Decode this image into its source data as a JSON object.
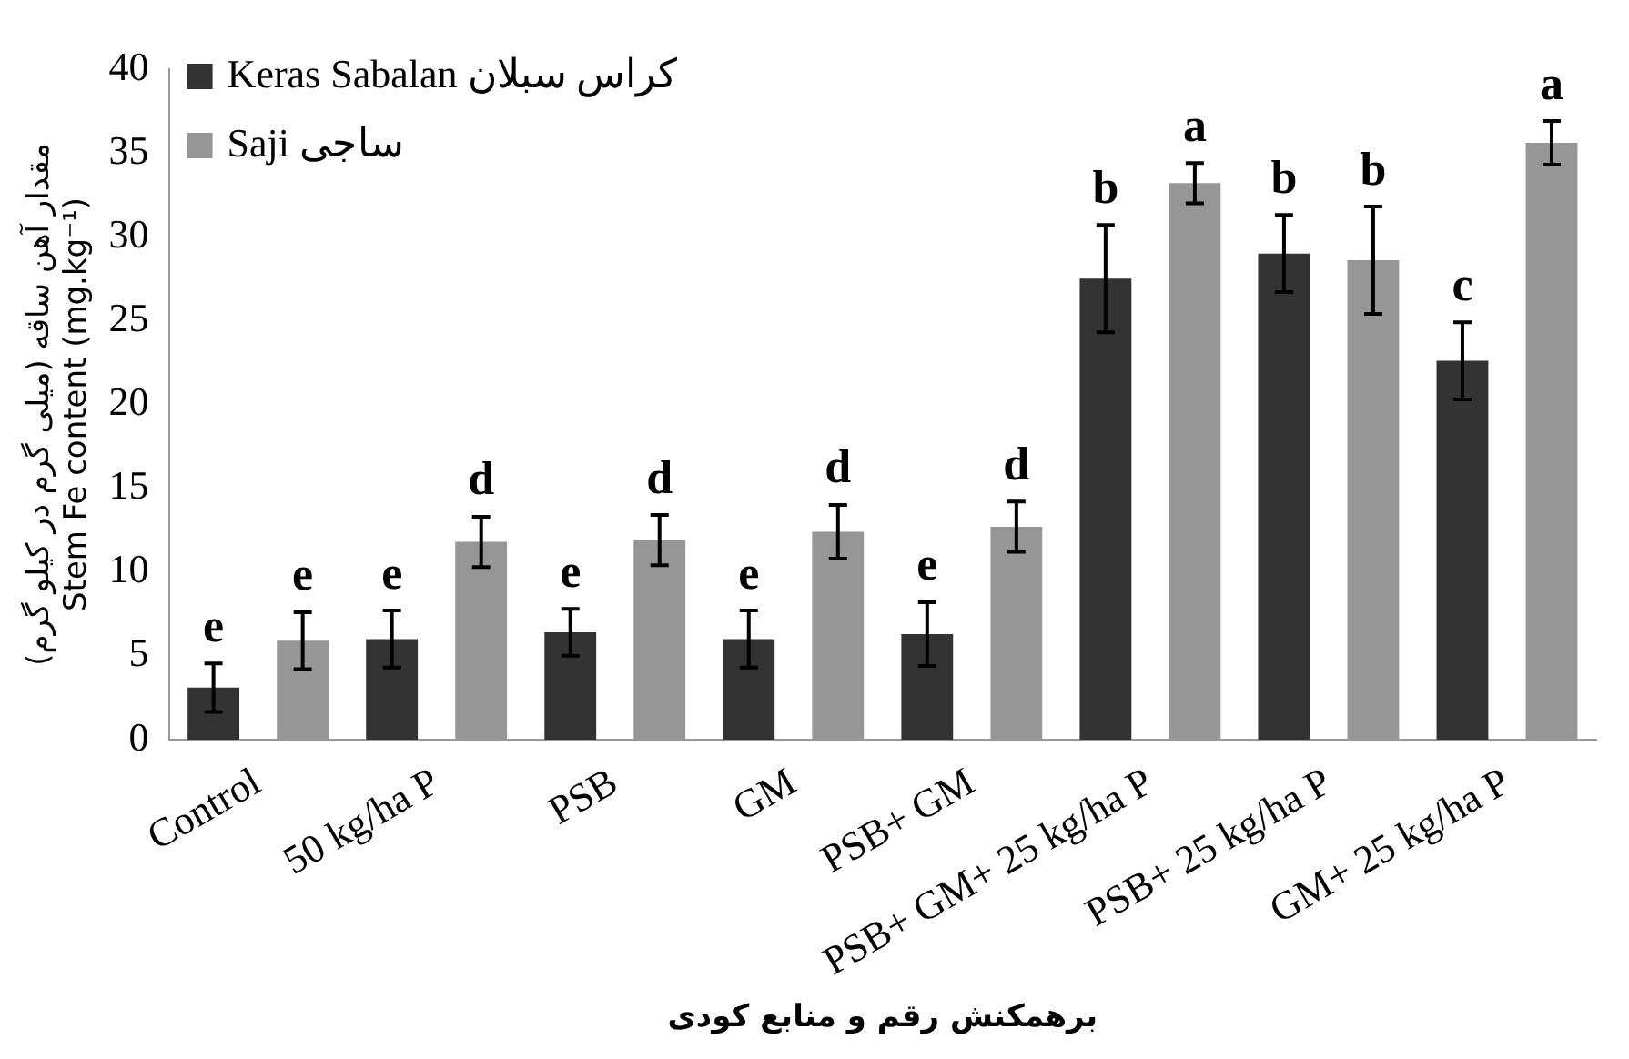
{
  "chart_data": {
    "type": "bar",
    "categories": [
      "Control",
      "50 kg/ha P",
      "PSB",
      "GM",
      "PSB+ GM",
      "PSB+ GM+ 25 kg/ha P",
      "PSB+ 25 kg/ha P",
      "GM+ 25 kg/ha P"
    ],
    "series": [
      {
        "name": "Keras Sabalan کراس سبلان",
        "color": "#333333",
        "values": [
          3.1,
          6.0,
          6.4,
          6.0,
          6.3,
          27.5,
          29.0,
          22.6
        ],
        "errors": [
          1.45,
          1.7,
          1.4,
          1.7,
          1.9,
          3.2,
          2.3,
          2.3
        ],
        "value_labels": [
          "e",
          "e",
          "e",
          "e",
          "e",
          "b",
          "b",
          "c"
        ]
      },
      {
        "name": "Saji ساجی",
        "color": "#969696",
        "values": [
          5.9,
          11.8,
          11.9,
          12.4,
          12.7,
          33.2,
          28.6,
          35.6
        ],
        "errors": [
          1.7,
          1.5,
          1.5,
          1.6,
          1.5,
          1.2,
          3.2,
          1.3
        ],
        "value_labels": [
          "e",
          "d",
          "d",
          "d",
          "d",
          "a",
          "b",
          "a"
        ]
      }
    ],
    "xlabel": "برهمکنش رقم و منابع کودی",
    "ylabel": "مقدار آهن ساقه (میلی گرم در کیلو گرم)\nStem Fe content (mg.kg⁻¹)",
    "ylim": [
      0,
      40
    ],
    "yticks": [
      0,
      5,
      10,
      15,
      20,
      25,
      30,
      35,
      40
    ],
    "grid": false,
    "legend": "top left"
  }
}
